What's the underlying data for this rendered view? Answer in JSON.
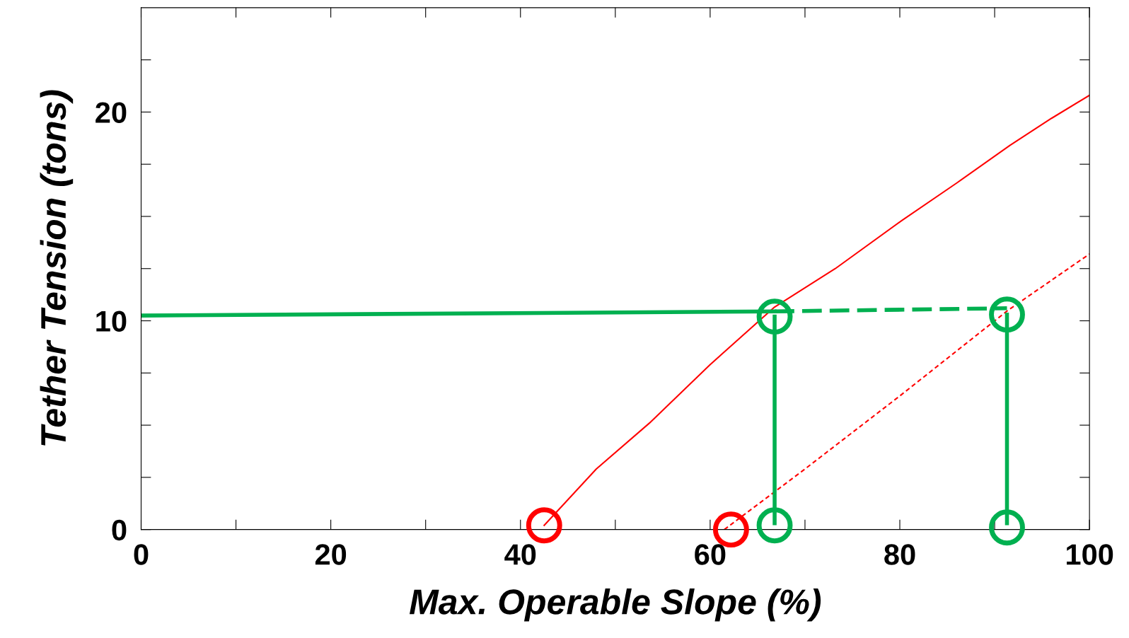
{
  "chart_data": {
    "type": "line",
    "xlabel": "Max. Operable Slope (%)",
    "ylabel": "Tether Tension (tons)",
    "xlim": [
      0,
      100
    ],
    "ylim": [
      0,
      25
    ],
    "xticks": [
      0,
      {
        "value": 10,
        "label": null
      },
      20,
      {
        "value": 30,
        "label": null
      },
      40,
      {
        "value": 50,
        "label": null
      },
      60,
      {
        "value": 70,
        "label": null
      },
      80,
      {
        "value": 90,
        "label": null
      },
      100
    ],
    "yticks": [
      0,
      {
        "value": 2.5,
        "label": null
      },
      {
        "value": 5,
        "label": null
      },
      {
        "value": 7.5,
        "label": null
      },
      10,
      {
        "value": 12.5,
        "label": null
      },
      {
        "value": 15,
        "label": null
      },
      {
        "value": 17.5,
        "label": null
      },
      20,
      {
        "value": 22.5,
        "label": null
      }
    ],
    "grid": false,
    "series": [
      {
        "color": "#ff0000",
        "line_style": "solid",
        "x": [
          42.5,
          48,
          53.6,
          60,
          66.8,
          73.2,
          80.2,
          86,
          91.6,
          96,
          100
        ],
        "values": [
          0.2,
          2.9,
          5.1,
          7.9,
          10.66,
          12.5,
          14.8,
          16.6,
          18.4,
          19.7,
          20.8
        ]
      },
      {
        "color": "#ff0000",
        "line_style": "dotted",
        "x": [
          61.5,
          70,
          80,
          91.4,
          100
        ],
        "values": [
          0,
          2.9,
          6.4,
          10.5,
          13.2
        ]
      },
      {
        "color": "#00b050",
        "line_style": "solid",
        "x": [
          0,
          66.8
        ],
        "values": [
          10.25,
          10.45
        ]
      },
      {
        "color": "#00b050",
        "line_style": "dashed",
        "x": [
          66.8,
          91.3
        ],
        "values": [
          10.45,
          10.6
        ]
      },
      {
        "color": "#00b050",
        "line_style": "solid",
        "x": [
          66.8,
          66.8
        ],
        "values": [
          10.2,
          0.3
        ]
      },
      {
        "color": "#00b050",
        "line_style": "solid",
        "x": [
          91.3,
          91.3
        ],
        "values": [
          10.3,
          0.3
        ]
      },
      {
        "type": "scatter",
        "color": "#ff0000",
        "marker": "circle",
        "x": [
          42.5,
          62.2
        ],
        "values": [
          0.2,
          0.0
        ]
      },
      {
        "type": "scatter",
        "color": "#00b050",
        "marker": "circle",
        "x": [
          66.8,
          66.8,
          91.3,
          91.3
        ],
        "values": [
          10.2,
          0.2,
          10.3,
          0.1
        ]
      }
    ]
  }
}
